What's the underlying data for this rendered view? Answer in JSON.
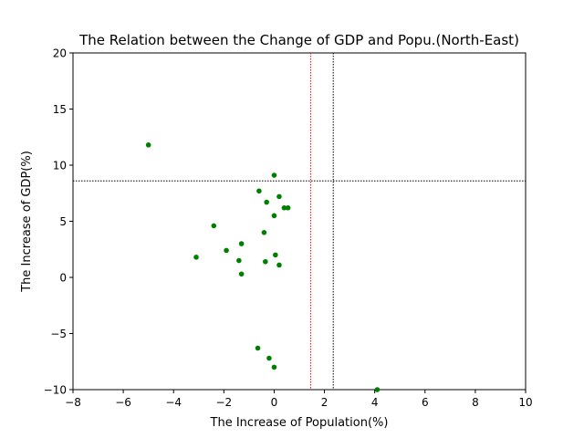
{
  "chart_data": {
    "type": "scatter",
    "title": "The Relation between the Change of GDP and Popu.(North-East)",
    "xlabel": "The Increase of Population(%)",
    "ylabel": "The Increase of GDP(%)",
    "xlim": [
      -8,
      10
    ],
    "ylim": [
      -10,
      20
    ],
    "xticks": [
      -8,
      -6,
      -4,
      -2,
      0,
      2,
      4,
      6,
      8,
      10
    ],
    "yticks": [
      -10,
      -5,
      0,
      5,
      10,
      15,
      20
    ],
    "xtick_labels": [
      "−8",
      "−6",
      "−4",
      "−2",
      "0",
      "2",
      "4",
      "6",
      "8",
      "10"
    ],
    "ytick_labels": [
      "−10",
      "−5",
      "0",
      "5",
      "10",
      "15",
      "20"
    ],
    "grid": false,
    "point_color": "#008000",
    "points": [
      {
        "x": -5.0,
        "y": 11.8
      },
      {
        "x": 0.0,
        "y": 9.1
      },
      {
        "x": -0.6,
        "y": 7.7
      },
      {
        "x": 0.2,
        "y": 7.2
      },
      {
        "x": -0.3,
        "y": 6.7
      },
      {
        "x": 0.4,
        "y": 6.2
      },
      {
        "x": 0.55,
        "y": 6.2
      },
      {
        "x": 0.0,
        "y": 5.5
      },
      {
        "x": -2.4,
        "y": 4.6
      },
      {
        "x": -0.4,
        "y": 4.0
      },
      {
        "x": -1.3,
        "y": 3.0
      },
      {
        "x": -1.9,
        "y": 2.4
      },
      {
        "x": 0.05,
        "y": 2.0
      },
      {
        "x": -3.1,
        "y": 1.8
      },
      {
        "x": -1.4,
        "y": 1.5
      },
      {
        "x": -0.35,
        "y": 1.4
      },
      {
        "x": 0.2,
        "y": 1.1
      },
      {
        "x": -1.3,
        "y": 0.3
      },
      {
        "x": -0.65,
        "y": -6.3
      },
      {
        "x": -0.2,
        "y": -7.2
      },
      {
        "x": 0.0,
        "y": -8.0
      },
      {
        "x": 4.1,
        "y": -10.0
      }
    ],
    "reference_lines": [
      {
        "orientation": "horizontal",
        "value": 8.6,
        "color": "#000000",
        "style": "dotted"
      },
      {
        "orientation": "vertical",
        "value": 2.35,
        "color": "#000000",
        "style": "dotted"
      },
      {
        "orientation": "vertical",
        "value": 1.45,
        "color": "#ff0000",
        "style": "dotted"
      }
    ]
  }
}
